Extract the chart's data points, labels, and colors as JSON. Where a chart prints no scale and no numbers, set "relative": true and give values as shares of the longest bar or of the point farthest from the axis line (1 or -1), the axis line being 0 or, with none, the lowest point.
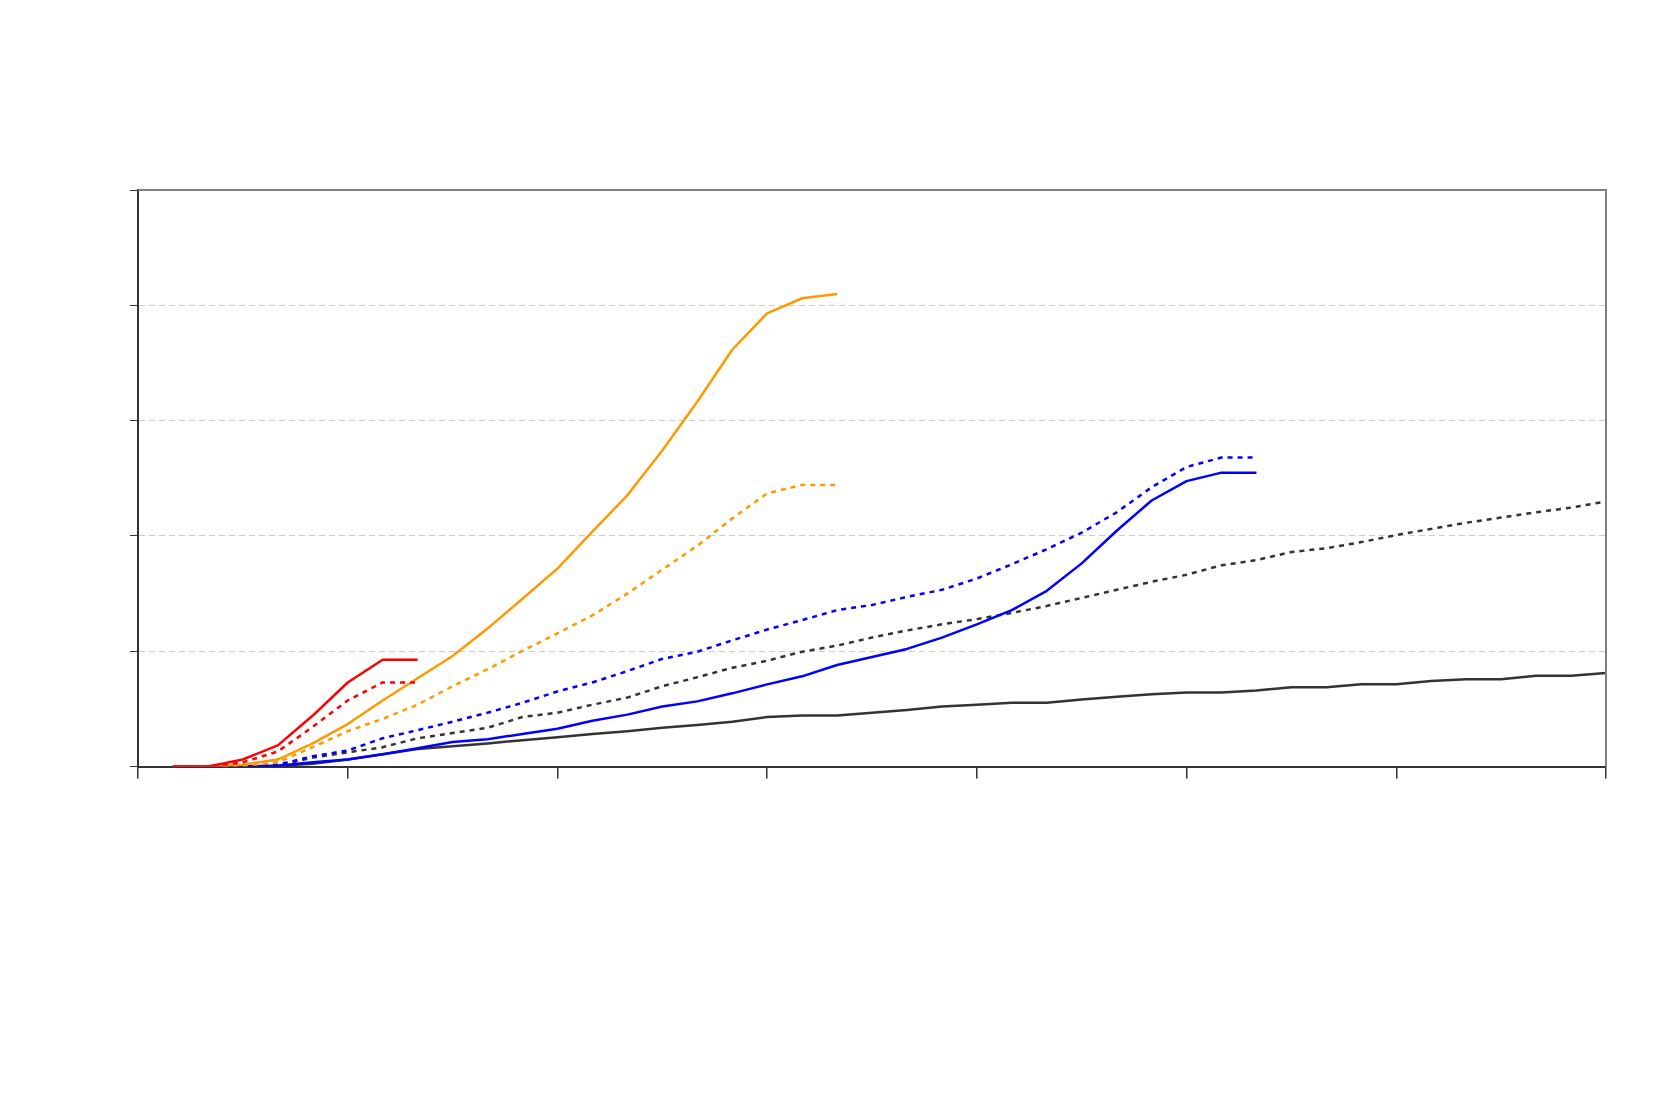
{
  "chart_data": {
    "type": "line",
    "relative": true,
    "grid": "y",
    "legend": false,
    "categories": [
      null,
      null,
      null,
      null,
      null,
      null,
      null,
      null,
      null,
      null,
      null,
      null,
      null,
      null,
      null,
      null,
      null,
      null,
      null,
      null,
      null,
      null,
      null,
      null,
      null,
      null,
      null,
      null,
      null,
      null,
      null,
      null,
      null,
      null,
      null,
      null,
      null,
      null,
      null,
      null,
      null,
      null,
      null
    ],
    "series": [
      {
        "color": "#ff0000",
        "line_style": "solid",
        "values": [
          null,
          0,
          0,
          0.015,
          0.045,
          0.108,
          0.178,
          0.226,
          0.226,
          null,
          null,
          null,
          null,
          null,
          null,
          null,
          null,
          null,
          null,
          null,
          null,
          null,
          null,
          null,
          null,
          null,
          null,
          null,
          null,
          null,
          null,
          null,
          null,
          null,
          null,
          null,
          null,
          null,
          null,
          null,
          null,
          null,
          null
        ]
      },
      {
        "color": "#ff0000",
        "line_style": "dotted",
        "values": [
          null,
          0,
          0,
          0.009,
          0.032,
          0.084,
          0.14,
          0.178,
          0.178,
          null,
          null,
          null,
          null,
          null,
          null,
          null,
          null,
          null,
          null,
          null,
          null,
          null,
          null,
          null,
          null,
          null,
          null,
          null,
          null,
          null,
          null,
          null,
          null,
          null,
          null,
          null,
          null,
          null,
          null,
          null,
          null,
          null,
          null
        ]
      },
      {
        "color": "#ff9900",
        "line_style": "solid",
        "values": [
          null,
          0,
          0,
          0.004,
          0.015,
          0.049,
          0.09,
          0.14,
          0.187,
          0.234,
          0.292,
          0.355,
          0.419,
          0.497,
          0.574,
          0.669,
          0.772,
          0.882,
          0.959,
          0.991,
          1,
          null,
          null,
          null,
          null,
          null,
          null,
          null,
          null,
          null,
          null,
          null,
          null,
          null,
          null,
          null,
          null,
          null,
          null,
          null,
          null,
          null,
          null
        ]
      },
      {
        "color": "#ff9900",
        "line_style": "dotted",
        "values": [
          null,
          0,
          0,
          0.002,
          0.009,
          0.041,
          0.075,
          0.101,
          0.131,
          0.17,
          0.206,
          0.245,
          0.282,
          0.32,
          0.366,
          0.417,
          0.467,
          0.525,
          0.578,
          0.596,
          0.596,
          null,
          null,
          null,
          null,
          null,
          null,
          null,
          null,
          null,
          null,
          null,
          null,
          null,
          null,
          null,
          null,
          null,
          null,
          null,
          null,
          null,
          null
        ]
      },
      {
        "color": "#0000ff",
        "line_style": "solid",
        "values": [
          null,
          0,
          0,
          0,
          0.002,
          0.009,
          0.015,
          0.026,
          0.039,
          0.052,
          0.058,
          0.069,
          0.08,
          0.097,
          0.11,
          0.127,
          0.138,
          0.155,
          0.174,
          0.191,
          0.215,
          0.232,
          0.249,
          0.273,
          0.301,
          0.331,
          0.372,
          0.43,
          0.499,
          0.563,
          0.604,
          0.622,
          0.622,
          null,
          null,
          null,
          null,
          null,
          null,
          null,
          null,
          null,
          null
        ]
      },
      {
        "color": "#0000ff",
        "line_style": "dotted",
        "values": [
          null,
          0,
          0,
          0,
          0.004,
          0.022,
          0.034,
          0.06,
          0.077,
          0.095,
          0.114,
          0.135,
          0.159,
          0.178,
          0.202,
          0.228,
          0.243,
          0.267,
          0.29,
          0.31,
          0.331,
          0.342,
          0.359,
          0.374,
          0.398,
          0.428,
          0.46,
          0.495,
          0.538,
          0.591,
          0.634,
          0.654,
          0.654,
          null,
          null,
          null,
          null,
          null,
          null,
          null,
          null,
          null,
          null
        ]
      },
      {
        "color": "#333333",
        "line_style": "dotted",
        "values": [
          null,
          0,
          0,
          0,
          0.002,
          0.019,
          0.03,
          0.041,
          0.06,
          0.071,
          0.082,
          0.105,
          0.114,
          0.131,
          0.146,
          0.17,
          0.189,
          0.209,
          0.224,
          0.243,
          0.256,
          0.273,
          0.288,
          0.301,
          0.312,
          0.325,
          0.34,
          0.357,
          0.374,
          0.391,
          0.406,
          0.426,
          0.437,
          0.454,
          0.462,
          0.475,
          0.49,
          0.503,
          0.516,
          0.527,
          0.538,
          0.548,
          0.561
        ]
      },
      {
        "color": "#333333",
        "line_style": "solid",
        "values": [
          null,
          0,
          0,
          0,
          0.002,
          0.006,
          0.015,
          0.026,
          0.037,
          0.043,
          0.049,
          0.056,
          0.062,
          0.069,
          0.075,
          0.082,
          0.088,
          0.095,
          0.105,
          0.108,
          0.108,
          0.114,
          0.12,
          0.127,
          0.131,
          0.135,
          0.135,
          0.142,
          0.148,
          0.153,
          0.157,
          0.157,
          0.161,
          0.168,
          0.168,
          0.174,
          0.174,
          0.181,
          0.185,
          0.185,
          0.192,
          0.192,
          0.198
        ]
      }
    ]
  }
}
